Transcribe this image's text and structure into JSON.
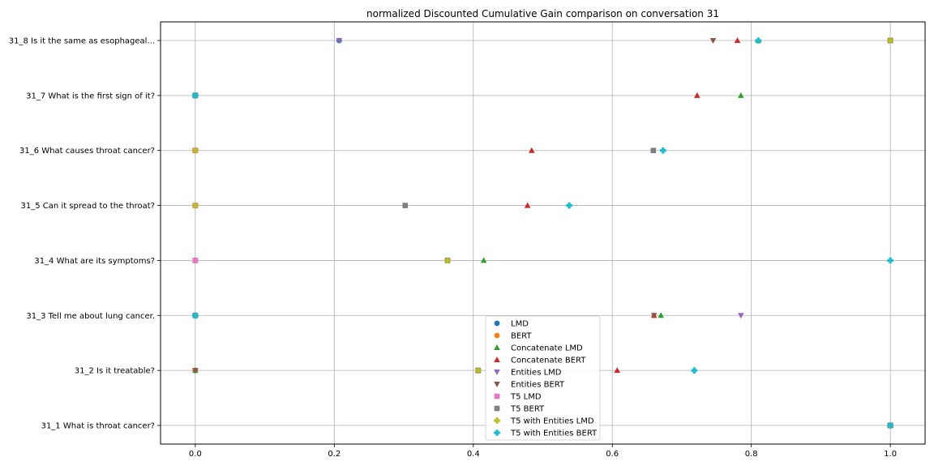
{
  "chart_data": {
    "type": "scatter",
    "title": "normalized Discounted Cumulative Gain comparison on conversation 31",
    "xlabel": "",
    "ylabel": "",
    "xlim": [
      -0.05,
      1.05
    ],
    "xticks": [
      0.0,
      0.2,
      0.4,
      0.6,
      0.8,
      1.0
    ],
    "xtick_labels": [
      "0.0",
      "0.2",
      "0.4",
      "0.6",
      "0.8",
      "1.0"
    ],
    "grid": true,
    "legend_position": "lower-center",
    "categories": [
      "31_1 What is throat cancer?",
      "31_2 Is it treatable?",
      "31_3 Tell me about lung cancer.",
      "31_4 What are its symptoms?",
      "31_5 Can it spread to the throat?",
      "31_6 What causes throat cancer?",
      "31_7 What is the first sign of it?",
      "31_8 Is it the same as esophageal..."
    ],
    "series": [
      {
        "name": "LMD",
        "marker": "circle",
        "color": "#1f77b4",
        "values": [
          1.0,
          0.0,
          0.0,
          0.0,
          0.0,
          0.0,
          0.0,
          0.207
        ]
      },
      {
        "name": "BERT",
        "marker": "circle",
        "color": "#ff7f0e",
        "values": [
          1.0,
          0.0,
          0.0,
          0.0,
          0.0,
          0.0,
          0.0,
          1.0
        ]
      },
      {
        "name": "Concatenate LMD",
        "marker": "triangle-up",
        "color": "#2ca02c",
        "values": [
          1.0,
          0.0,
          0.67,
          0.415,
          0.0,
          0.0,
          0.785,
          0.81
        ]
      },
      {
        "name": "Concatenate BERT",
        "marker": "triangle-up",
        "color": "#d62728",
        "values": [
          1.0,
          0.607,
          0.66,
          0.0,
          0.478,
          0.484,
          0.722,
          0.78
        ]
      },
      {
        "name": "Entities LMD",
        "marker": "triangle-down",
        "color": "#9467bd",
        "values": [
          1.0,
          0.0,
          0.785,
          0.0,
          0.0,
          0.0,
          0.0,
          0.207
        ]
      },
      {
        "name": "Entities BERT",
        "marker": "triangle-down",
        "color": "#8c564b",
        "values": [
          1.0,
          0.0,
          0.66,
          0.0,
          0.0,
          0.0,
          0.0,
          0.745
        ]
      },
      {
        "name": "T5 LMD",
        "marker": "square",
        "color": "#e377c2",
        "values": [
          1.0,
          0.407,
          0.0,
          0.0,
          0.0,
          0.0,
          0.0,
          1.0
        ]
      },
      {
        "name": "T5 BERT",
        "marker": "square",
        "color": "#7f7f7f",
        "values": [
          1.0,
          0.407,
          0.0,
          0.363,
          0.302,
          0.659,
          0.0,
          1.0
        ]
      },
      {
        "name": "T5 with Entities LMD",
        "marker": "plus",
        "color": "#bcbd22",
        "values": [
          1.0,
          0.407,
          0.0,
          0.363,
          0.0,
          0.0,
          0.0,
          1.0
        ]
      },
      {
        "name": "T5 with Entities BERT",
        "marker": "plus",
        "color": "#17becf",
        "values": [
          1.0,
          0.718,
          0.0,
          1.0,
          0.538,
          0.673,
          0.0,
          0.81
        ]
      }
    ]
  }
}
